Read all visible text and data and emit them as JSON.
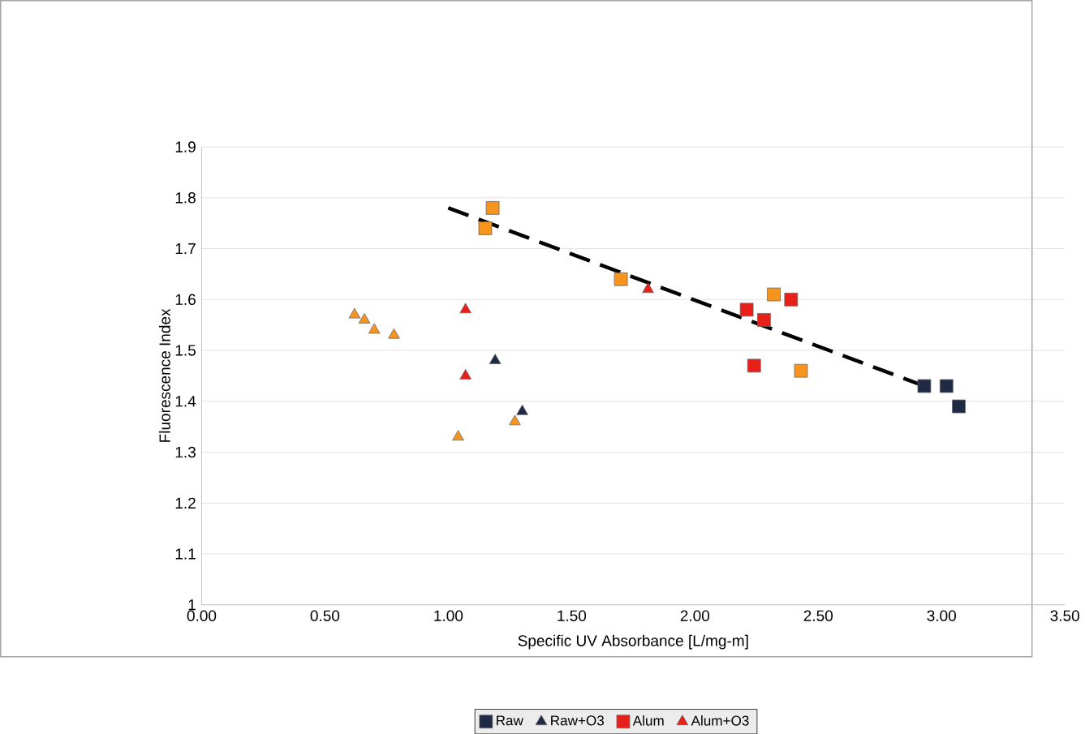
{
  "chart_data": {
    "type": "scatter",
    "xlabel": "Specific UV Absorbance [L/mg-m]",
    "ylabel": "Fluorescence Index",
    "xlim": [
      0,
      3.5
    ],
    "ylim": [
      1,
      1.9
    ],
    "xticks": [
      {
        "value": 0,
        "label": "0.00"
      },
      {
        "value": 0.5,
        "label": "0.50"
      },
      {
        "value": 1,
        "label": "1.00"
      },
      {
        "value": 1.5,
        "label": "1.50"
      },
      {
        "value": 2,
        "label": "2.00"
      },
      {
        "value": 2.5,
        "label": "2.50"
      },
      {
        "value": 3,
        "label": "3.00"
      },
      {
        "value": 3.5,
        "label": "3.50"
      }
    ],
    "yticks": [
      1,
      1.1,
      1.2,
      1.3,
      1.4,
      1.5,
      1.6,
      1.7,
      1.8,
      1.9
    ],
    "grid": "y",
    "legend": "bottom",
    "series": [
      {
        "name": "Raw",
        "color": "#1f2a44",
        "marker": "square",
        "x": [
          2.93,
          3.02,
          3.07
        ],
        "values": [
          1.43,
          1.43,
          1.39
        ]
      },
      {
        "name": "Raw+O3",
        "color": "#1f2a44",
        "marker": "triangle",
        "x": [
          1.19,
          1.3
        ],
        "values": [
          1.48,
          1.38
        ]
      },
      {
        "name": "Alum",
        "color": "#e8201a",
        "marker": "square",
        "x": [
          2.21,
          2.28,
          2.39,
          2.24
        ],
        "values": [
          1.58,
          1.56,
          1.6,
          1.47
        ]
      },
      {
        "name": "Alum+O3",
        "color": "#e8201a",
        "marker": "triangle",
        "x": [
          1.07,
          1.07,
          1.81
        ],
        "values": [
          1.58,
          1.45,
          1.62
        ]
      },
      {
        "color": "#f7941d",
        "marker": "square",
        "x": [
          1.18,
          1.15,
          1.7,
          2.32,
          2.43
        ],
        "values": [
          1.78,
          1.74,
          1.64,
          1.61,
          1.46
        ]
      },
      {
        "color": "#f7941d",
        "marker": "triangle",
        "x": [
          0.62,
          0.66,
          0.7,
          0.78,
          1.04,
          1.27
        ],
        "values": [
          1.57,
          1.56,
          1.54,
          1.53,
          1.33,
          1.36
        ]
      },
      {
        "type": "line",
        "color": "#000000",
        "marker": "none",
        "line_style": "dashed",
        "x": [
          1.0,
          2.93
        ],
        "values": [
          1.78,
          1.43
        ]
      }
    ]
  }
}
